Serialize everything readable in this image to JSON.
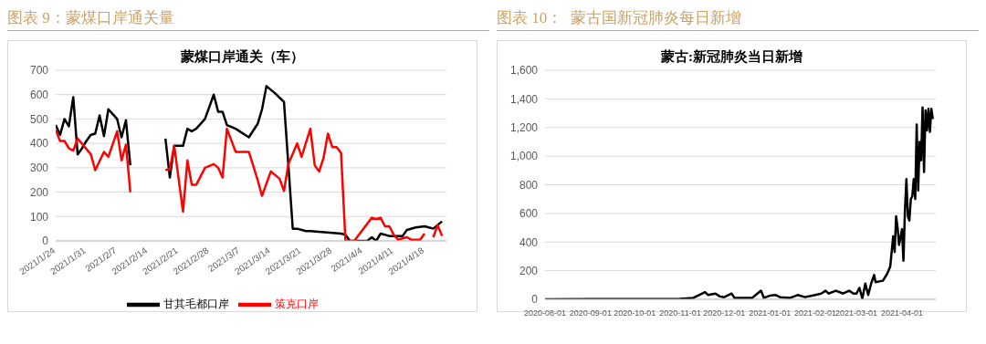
{
  "chart_data": [
    {
      "type": "line",
      "title": "图表 9：蒙煤口岸通关量",
      "subtitle": "蒙煤口岸通关（车）",
      "xlim": [
        "2021-01-24",
        "2021-04-23"
      ],
      "xticks": [
        {
          "value": "2021-01-24",
          "label": "2021/1/24"
        },
        {
          "value": "2021-01-31",
          "label": "2021/1/31"
        },
        {
          "value": "2021-02-07",
          "label": "2021/2/7"
        },
        {
          "value": "2021-02-14",
          "label": "2021/2/14"
        },
        {
          "value": "2021-02-21",
          "label": "2021/2/21"
        },
        {
          "value": "2021-02-28",
          "label": "2021/2/28"
        },
        {
          "value": "2021-03-07",
          "label": "2021/3/7"
        },
        {
          "value": "2021-03-14",
          "label": "2021/3/14"
        },
        {
          "value": "2021-03-21",
          "label": "2021/3/21"
        },
        {
          "value": "2021-03-28",
          "label": "2021/3/28"
        },
        {
          "value": "2021-04-04",
          "label": "2021/4/4"
        },
        {
          "value": "2021-04-11",
          "label": "2021/4/11"
        },
        {
          "value": "2021-04-18",
          "label": "2021/4/18"
        }
      ],
      "ylim": [
        0,
        700
      ],
      "yticks": [
        0,
        100,
        200,
        300,
        400,
        500,
        600,
        700
      ],
      "grid": "y",
      "legend": "bottom",
      "line_style": "solid",
      "series": [
        {
          "name": "甘其毛都口岸",
          "color": "#000000",
          "x": [
            "2021-01-24",
            "2021-01-25",
            "2021-01-26",
            "2021-01-27",
            "2021-01-28",
            "2021-01-29",
            "2021-01-30",
            "2021-01-31",
            "2021-02-01",
            "2021-02-02",
            "2021-02-03",
            "2021-02-04",
            "2021-02-05",
            "2021-02-06",
            "2021-02-07",
            "2021-02-08",
            "2021-02-09",
            "2021-02-10",
            "2021-02-14",
            "2021-02-18",
            "2021-02-19",
            "2021-02-20",
            "2021-02-22",
            "2021-02-23",
            "2021-02-24",
            "2021-02-25",
            "2021-02-27",
            "2021-03-01",
            "2021-03-02",
            "2021-03-03",
            "2021-03-04",
            "2021-03-06",
            "2021-03-09",
            "2021-03-11",
            "2021-03-12",
            "2021-03-13",
            "2021-03-15",
            "2021-03-17",
            "2021-03-19",
            "2021-03-20",
            "2021-03-22",
            "2021-03-23",
            "2021-03-30",
            "2021-03-31",
            "2021-04-01",
            "2021-04-05",
            "2021-04-06",
            "2021-04-07",
            "2021-04-08",
            "2021-04-10",
            "2021-04-13",
            "2021-04-14",
            "2021-04-16",
            "2021-04-18",
            "2021-04-19",
            "2021-04-20",
            "2021-04-22"
          ],
          "values": [
            475,
            435,
            500,
            470,
            590,
            355,
            380,
            410,
            435,
            440,
            515,
            430,
            540,
            520,
            500,
            425,
            495,
            310,
            null,
            420,
            260,
            390,
            390,
            460,
            450,
            460,
            500,
            600,
            530,
            530,
            475,
            460,
            425,
            480,
            540,
            635,
            605,
            570,
            50,
            50,
            40,
            40,
            30,
            25,
            0,
            0,
            15,
            0,
            30,
            20,
            20,
            45,
            55,
            60,
            55,
            50,
            80
          ]
        },
        {
          "name": "策克口岸",
          "color": "#ff0000",
          "x": [
            "2021-01-24",
            "2021-01-25",
            "2021-01-26",
            "2021-01-27",
            "2021-01-28",
            "2021-01-29",
            "2021-02-01",
            "2021-02-02",
            "2021-02-04",
            "2021-02-05",
            "2021-02-07",
            "2021-02-08",
            "2021-02-09",
            "2021-02-10",
            "2021-02-14",
            "2021-02-18",
            "2021-02-19",
            "2021-02-20",
            "2021-02-22",
            "2021-02-23",
            "2021-02-24",
            "2021-02-25",
            "2021-02-27",
            "2021-03-01",
            "2021-03-02",
            "2021-03-03",
            "2021-03-04",
            "2021-03-06",
            "2021-03-09",
            "2021-03-11",
            "2021-03-12",
            "2021-03-14",
            "2021-03-16",
            "2021-03-17",
            "2021-03-18",
            "2021-03-20",
            "2021-03-21",
            "2021-03-23",
            "2021-03-24",
            "2021-03-25",
            "2021-03-26",
            "2021-03-27",
            "2021-03-28",
            "2021-03-29",
            "2021-03-30",
            "2021-03-31",
            "2021-04-02",
            "2021-04-06",
            "2021-04-07",
            "2021-04-08",
            "2021-04-09",
            "2021-04-10",
            "2021-04-11",
            "2021-04-12",
            "2021-04-13",
            "2021-04-14",
            "2021-04-15",
            "2021-04-16",
            "2021-04-17",
            "2021-04-18",
            "2021-04-19",
            "2021-04-20",
            "2021-04-21",
            "2021-04-22"
          ],
          "values": [
            455,
            410,
            410,
            380,
            370,
            420,
            355,
            290,
            365,
            345,
            450,
            330,
            395,
            200,
            null,
            290,
            295,
            390,
            120,
            330,
            230,
            230,
            300,
            315,
            300,
            260,
            460,
            365,
            365,
            250,
            185,
            285,
            255,
            205,
            315,
            400,
            345,
            460,
            310,
            285,
            340,
            440,
            385,
            385,
            360,
            0,
            0,
            95,
            90,
            95,
            60,
            60,
            25,
            5,
            10,
            15,
            5,
            5,
            5,
            30,
            null,
            15,
            65,
            20
          ]
        }
      ]
    },
    {
      "type": "line",
      "title": "图表 10：  蒙古国新冠肺炎每日新增",
      "subtitle": "蒙古:新冠肺炎当日新增",
      "xlim": [
        "2020-08-01",
        "2021-04-24"
      ],
      "xticks": [
        "2020-08-01",
        "2020-09-01",
        "2020-10-01",
        "2020-11-01",
        "2020-12-01",
        "2021-01-01",
        "2021-02-01",
        "2021-03-01",
        "2021-04-01"
      ],
      "ylim": [
        0,
        1600
      ],
      "yticks": [
        0,
        200,
        400,
        600,
        800,
        {
          "value": 1000,
          "label": "1,000"
        },
        {
          "value": 1200,
          "label": "1,200"
        },
        {
          "value": 1400,
          "label": "1,400"
        },
        {
          "value": 1600,
          "label": "1,600"
        }
      ],
      "grid": "y",
      "line_style": "solid",
      "series": [
        {
          "color": "#000000",
          "x": [
            "2020-08-01",
            "2020-09-01",
            "2020-10-01",
            "2020-11-01",
            "2020-11-10",
            "2020-11-18",
            "2020-11-20",
            "2020-11-25",
            "2020-11-28",
            "2020-12-01",
            "2020-12-06",
            "2020-12-08",
            "2020-12-20",
            "2020-12-26",
            "2020-12-28",
            "2021-01-01",
            "2021-01-05",
            "2021-01-08",
            "2021-01-15",
            "2021-01-20",
            "2021-01-25",
            "2021-02-01",
            "2021-02-05",
            "2021-02-08",
            "2021-02-10",
            "2021-02-15",
            "2021-02-20",
            "2021-02-24",
            "2021-02-27",
            "2021-03-01",
            "2021-03-03",
            "2021-03-05",
            "2021-03-07",
            "2021-03-09",
            "2021-03-11",
            "2021-03-13",
            "2021-03-14",
            "2021-03-19",
            "2021-03-22",
            "2021-03-24",
            "2021-03-26",
            "2021-03-27",
            "2021-03-28",
            "2021-03-29",
            "2021-03-30",
            "2021-04-01",
            "2021-04-02",
            "2021-04-03",
            "2021-04-04",
            "2021-04-05",
            "2021-04-06",
            "2021-04-07",
            "2021-04-08",
            "2021-04-09",
            "2021-04-10",
            "2021-04-11",
            "2021-04-12",
            "2021-04-13",
            "2021-04-14",
            "2021-04-15",
            "2021-04-16",
            "2021-04-17",
            "2021-04-18",
            "2021-04-19",
            "2021-04-20",
            "2021-04-21",
            "2021-04-22"
          ],
          "values": [
            0,
            2,
            1,
            3,
            10,
            50,
            30,
            40,
            20,
            15,
            40,
            10,
            10,
            60,
            10,
            25,
            30,
            15,
            10,
            30,
            15,
            30,
            40,
            60,
            40,
            60,
            40,
            60,
            40,
            40,
            80,
            5,
            110,
            30,
            110,
            170,
            120,
            130,
            180,
            230,
            440,
            330,
            580,
            500,
            380,
            490,
            270,
            620,
            840,
            580,
            550,
            700,
            720,
            840,
            700,
            1220,
            760,
            1100,
            970,
            1340,
            890,
            1320,
            1180,
            1330,
            1170,
            1330,
            1260
          ]
        }
      ]
    }
  ]
}
